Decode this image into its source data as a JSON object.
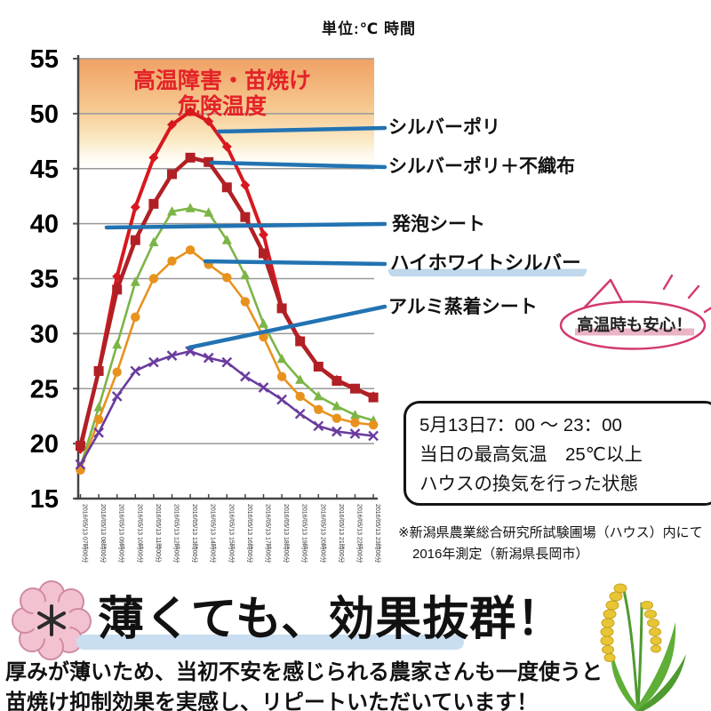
{
  "header": {
    "unit_label": "単位:℃ 時間"
  },
  "chart_data": {
    "type": "line",
    "x_labels": [
      "2016/05/13 07時00分",
      "2016/05/13 08時00分",
      "2016/05/13 09時00分",
      "2016/05/13 10時00分",
      "2016/05/13 11時00分",
      "2016/05/13 12時00分",
      "2016/05/13 13時00分",
      "2016/05/13 14時00分",
      "2016/05/13 15時00分",
      "2016/05/13 16時00分",
      "2016/05/13 17時00分",
      "2016/05/13 18時00分",
      "2016/05/13 19時00分",
      "2016/05/13 20時00分",
      "2016/05/13 21時00分",
      "2016/05/13 22時00分",
      "2016/05/13 23時00分"
    ],
    "ylim": [
      15,
      55
    ],
    "ytick_step": 5,
    "grid": true,
    "pointer_color": "#2273b2",
    "danger_zone": {
      "label_line1": "高温障害・苗焼け",
      "label_line2": "危険温度",
      "text_color": "#e32329",
      "colors": [
        "#f0a164",
        "#f6c78e",
        "#fbecca"
      ]
    },
    "series": [
      {
        "name": "シルバーポリ",
        "color": "#d7181f",
        "marker": "diamond",
        "width": 4,
        "values": [
          19.5,
          26.7,
          35.2,
          41.5,
          46.0,
          49.0,
          50.2,
          49.3,
          47.0,
          43.5,
          39.0,
          32.4,
          29.4,
          27.0,
          25.8,
          25.0,
          24.3
        ]
      },
      {
        "name": "シルバーポリ＋不織布",
        "color": "#b02025",
        "marker": "square",
        "width": 4.5,
        "values": [
          19.8,
          26.6,
          34.0,
          38.5,
          41.8,
          44.5,
          46.0,
          45.6,
          43.3,
          40.6,
          37.3,
          32.3,
          29.3,
          27.0,
          25.7,
          25.0,
          24.2
        ]
      },
      {
        "name": "発泡シート",
        "color": "#7cb547",
        "marker": "triangle",
        "width": 2.6,
        "values": [
          17.9,
          23.3,
          29.0,
          34.7,
          38.3,
          41.1,
          41.4,
          41.0,
          38.5,
          35.3,
          30.9,
          27.7,
          25.8,
          24.3,
          23.4,
          22.6,
          22.1
        ]
      },
      {
        "name": "ハイホワイトシルバー",
        "color": "#e8921e",
        "marker": "circle",
        "width": 2.6,
        "values": [
          17.6,
          22.2,
          26.5,
          31.5,
          35.0,
          36.6,
          37.6,
          36.3,
          35.1,
          32.9,
          29.7,
          26.1,
          24.3,
          23.1,
          22.3,
          21.9,
          21.7
        ]
      },
      {
        "name": "アルミ蒸着シート",
        "color": "#6a3c9e",
        "marker": "x",
        "width": 2.6,
        "values": [
          18.1,
          21.0,
          24.3,
          26.6,
          27.4,
          28.0,
          28.4,
          27.8,
          27.4,
          26.1,
          25.1,
          24.0,
          22.7,
          21.6,
          21.1,
          20.9,
          20.7
        ]
      }
    ]
  },
  "annotations": {
    "bubble_text": "高温時も安心！"
  },
  "info_box": {
    "line1": "5月13日7：00 ～ 23：00",
    "line2": "当日の最高気温　25℃以上",
    "line3": "ハウスの換気を行った状態"
  },
  "footnote": {
    "line1": "※新潟県農業総合研究所試験圃場（ハウス）内にて",
    "line2": "2016年測定（新潟県長岡市）"
  },
  "bottom": {
    "headline": "薄くても、効果抜群！",
    "body_line1": "厚みが薄いため、当初不安を感じられる農家さんも一度使うと",
    "body_line2": "苗焼け抑制効果を実感し、リピートいただいています！"
  },
  "colors": {
    "highlight_blue": "#bfd8eb",
    "headline_bar_blue": "#c9def0",
    "bubble_pink": "#d23a6e",
    "underline_pink": "#eab4c5"
  }
}
